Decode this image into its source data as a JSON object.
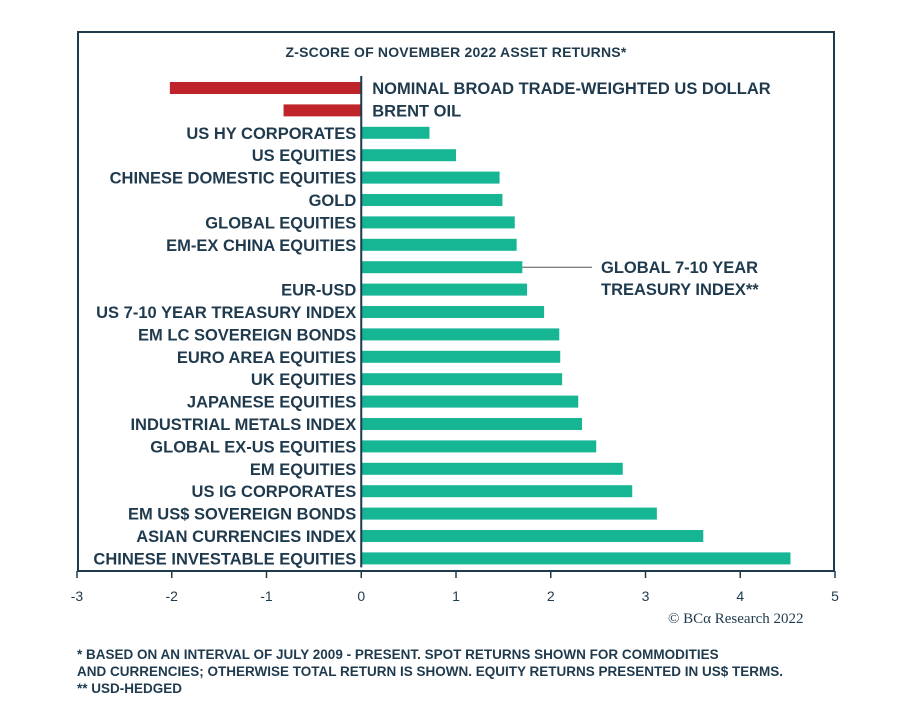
{
  "chart_data": {
    "type": "bar",
    "orientation": "horizontal",
    "title": "Z-SCORE OF NOVEMBER 2022 ASSET RETURNS*",
    "xlim": [
      -3,
      5
    ],
    "xticks": [
      "-3",
      "-2",
      "-1",
      "0",
      "1",
      "2",
      "3",
      "4",
      "5"
    ],
    "colors": {
      "positive": "#16b594",
      "negative": "#c0242b",
      "text": "#1f3a4d"
    },
    "categories": [
      "NOMINAL BROAD TRADE-WEIGHTED US DOLLAR",
      "BRENT OIL",
      "US HY CORPORATES",
      "US EQUITIES",
      "CHINESE DOMESTIC EQUITIES",
      "GOLD",
      "GLOBAL EQUITIES",
      "EM-EX CHINA EQUITIES",
      "",
      "EUR-USD",
      "US 7-10 YEAR TREASURY INDEX",
      "EM LC SOVEREIGN BONDS",
      "EURO AREA EQUITIES",
      "UK EQUITIES",
      "JAPANESE EQUITIES",
      "INDUSTRIAL METALS INDEX",
      "GLOBAL EX-US EQUITIES",
      "EM EQUITIES",
      "US IG CORPORATES",
      "EM US$ SOVEREIGN BONDS",
      "ASIAN CURRENCIES INDEX",
      "CHINESE INVESTABLE EQUITIES"
    ],
    "values": [
      -2.02,
      -0.82,
      0.72,
      1.0,
      1.46,
      1.49,
      1.62,
      1.64,
      1.7,
      1.75,
      1.93,
      2.09,
      2.1,
      2.12,
      2.29,
      2.33,
      2.48,
      2.76,
      2.86,
      3.12,
      3.61,
      4.53
    ],
    "annotation": {
      "category_index": 8,
      "lines": [
        "GLOBAL 7-10 YEAR",
        "TREASURY INDEX**"
      ]
    }
  },
  "copyright": "© BCα Research 2022",
  "footnotes": [
    "* BASED ON AN INTERVAL OF JULY 2009 - PRESENT. SPOT RETURNS SHOWN FOR COMMODITIES",
    "AND CURRENCIES; OTHERWISE TOTAL RETURN IS SHOWN. EQUITY RETURNS PRESENTED IN US$ TERMS.",
    "** USD-HEDGED"
  ]
}
